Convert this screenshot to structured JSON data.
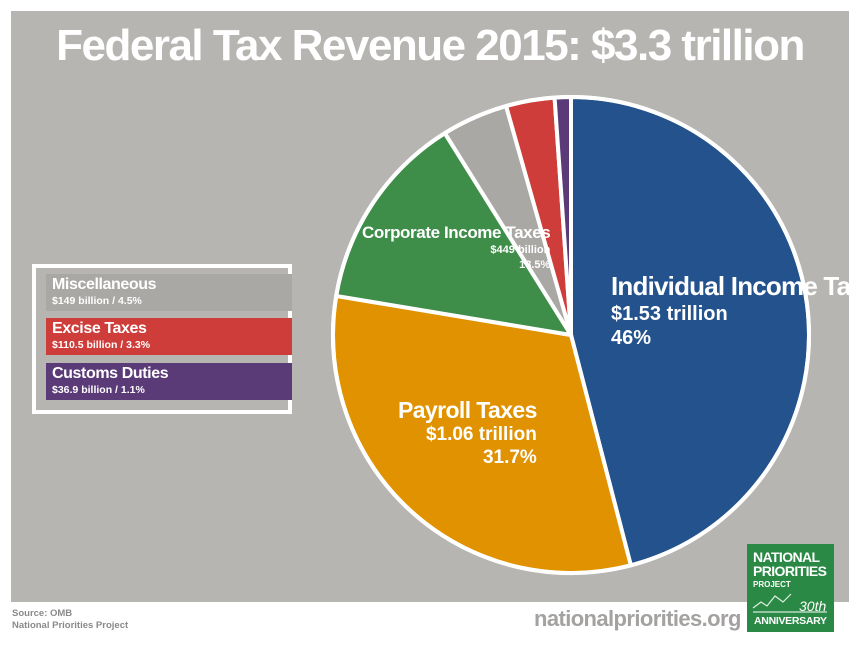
{
  "chart_data": {
    "type": "pie",
    "title": "Federal Tax Revenue 2015: $3.3 trillion",
    "slices": [
      {
        "name": "Individual Income Taxes",
        "value_label": "$1.53 trillion",
        "percent_label": "46%",
        "percent": 46.0,
        "color": "#23528c"
      },
      {
        "name": "Payroll Taxes",
        "value_label": "$1.06 trillion",
        "percent_label": "31.7%",
        "percent": 31.7,
        "color": "#e09200"
      },
      {
        "name": "Corporate Income Taxes",
        "value_label": "$449 billion",
        "percent_label": "13.5%",
        "percent": 13.5,
        "color": "#3e8e4a"
      },
      {
        "name": "Miscellaneous",
        "value_label": "$149 billion",
        "percent_label": "4.5%",
        "percent": 4.5,
        "color": "#aaa8a5"
      },
      {
        "name": "Excise Taxes",
        "value_label": "$110.5 billion",
        "percent_label": "3.3%",
        "percent": 3.3,
        "color": "#cf3d3a"
      },
      {
        "name": "Customs Duties",
        "value_label": "$36.9 billion",
        "percent_label": "1.1%",
        "percent": 1.1,
        "color": "#5a3b78"
      }
    ],
    "legend": [
      {
        "name": "Miscellaneous",
        "detail": "$149 billion / 4.5%",
        "color": "#aaa8a5"
      },
      {
        "name": "Excise Taxes",
        "detail": "$110.5 billion / 3.3%",
        "color": "#cf3d3a"
      },
      {
        "name": "Customs Duties",
        "detail": "$36.9 billion / 1.1%",
        "color": "#5a3b78"
      }
    ],
    "legend_placement": "left"
  },
  "colors": {
    "background": "#b7b5b1",
    "title": "#ffffff",
    "logo": "#2a8a45"
  },
  "source": {
    "line1": "Source: OMB",
    "line2": "National Priorities Project"
  },
  "website": "nationalpriorities.org",
  "logo": {
    "line1": "NATIONAL",
    "line2": "PRIORITIES",
    "line3": "PROJECT",
    "line4": "30th",
    "line5": "ANNIVERSARY"
  }
}
